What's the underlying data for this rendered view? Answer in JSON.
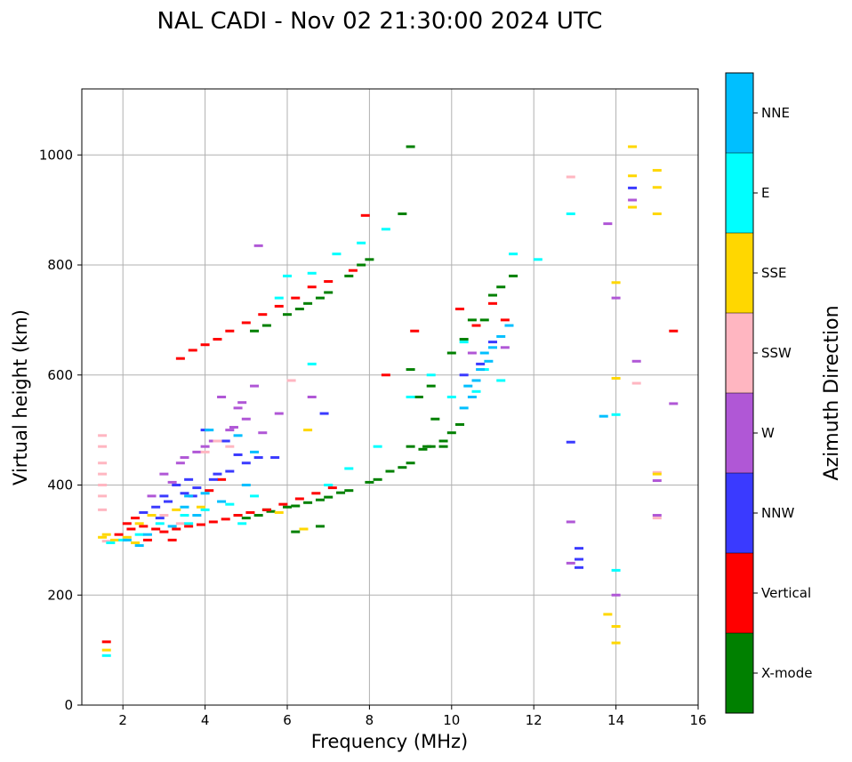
{
  "chart_data": {
    "type": "scatter",
    "title": "NAL CADI - Nov 02 21:30:00 2024 UTC",
    "xlabel": "Frequency (MHz)",
    "ylabel": "Virtual height (km)",
    "xlim": [
      1,
      16
    ],
    "ylim": [
      0,
      1120
    ],
    "xticks": [
      2,
      4,
      6,
      8,
      10,
      12,
      14,
      16
    ],
    "yticks": [
      0,
      200,
      400,
      600,
      800,
      1000
    ],
    "grid": true,
    "colorbar": {
      "title": "Azimuth Direction",
      "categories": [
        {
          "name": "X-mode",
          "color": "#008000"
        },
        {
          "name": "Vertical",
          "color": "#ff0000"
        },
        {
          "name": "NNW",
          "color": "#3a3aff"
        },
        {
          "name": "W",
          "color": "#b057d6"
        },
        {
          "name": "SSW",
          "color": "#ffb6c1"
        },
        {
          "name": "SSE",
          "color": "#ffd700"
        },
        {
          "name": "E",
          "color": "#00ffff"
        },
        {
          "name": "NNE",
          "color": "#00bfff"
        }
      ]
    },
    "series": [
      {
        "name": "X-mode",
        "points": [
          [
            5.0,
            340
          ],
          [
            5.3,
            345
          ],
          [
            5.6,
            352
          ],
          [
            6.0,
            360
          ],
          [
            6.5,
            368
          ],
          [
            7.0,
            378
          ],
          [
            7.5,
            390
          ],
          [
            8.0,
            405
          ],
          [
            8.5,
            425
          ],
          [
            9.0,
            440
          ],
          [
            9.5,
            470
          ],
          [
            10.0,
            495
          ],
          [
            4.8,
            345
          ],
          [
            5.5,
            355
          ],
          [
            6.2,
            362
          ],
          [
            6.8,
            373
          ],
          [
            7.3,
            386
          ],
          [
            8.2,
            410
          ],
          [
            8.8,
            432
          ],
          [
            9.3,
            465
          ],
          [
            9.8,
            480
          ],
          [
            10.2,
            510
          ],
          [
            5.5,
            690
          ],
          [
            6.0,
            710
          ],
          [
            6.5,
            730
          ],
          [
            7.0,
            750
          ],
          [
            7.5,
            780
          ],
          [
            8.0,
            810
          ],
          [
            5.2,
            680
          ],
          [
            6.3,
            720
          ],
          [
            6.8,
            740
          ],
          [
            7.8,
            800
          ],
          [
            9.0,
            1015
          ],
          [
            9.0,
            610
          ],
          [
            9.5,
            580
          ],
          [
            10.0,
            640
          ],
          [
            10.5,
            700
          ],
          [
            11.0,
            745
          ],
          [
            11.5,
            780
          ],
          [
            9.2,
            560
          ],
          [
            9.6,
            520
          ],
          [
            10.3,
            665
          ],
          [
            6.2,
            315
          ],
          [
            6.8,
            325
          ],
          [
            8.8,
            893
          ],
          [
            10.8,
            700
          ],
          [
            11.2,
            760
          ],
          [
            9.4,
            470
          ],
          [
            9.0,
            470
          ],
          [
            9.8,
            470
          ]
        ]
      },
      {
        "name": "Vertical",
        "points": [
          [
            1.9,
            310
          ],
          [
            2.2,
            320
          ],
          [
            2.5,
            325
          ],
          [
            2.8,
            320
          ],
          [
            3.0,
            315
          ],
          [
            3.3,
            320
          ],
          [
            3.6,
            325
          ],
          [
            3.9,
            328
          ],
          [
            4.2,
            333
          ],
          [
            4.5,
            338
          ],
          [
            4.8,
            345
          ],
          [
            5.1,
            350
          ],
          [
            5.5,
            355
          ],
          [
            5.9,
            365
          ],
          [
            6.3,
            375
          ],
          [
            6.7,
            385
          ],
          [
            7.1,
            395
          ],
          [
            2.3,
            340
          ],
          [
            2.1,
            330
          ],
          [
            3.4,
            630
          ],
          [
            3.7,
            645
          ],
          [
            4.0,
            655
          ],
          [
            4.3,
            665
          ],
          [
            4.6,
            680
          ],
          [
            5.0,
            695
          ],
          [
            5.4,
            710
          ],
          [
            5.8,
            725
          ],
          [
            6.2,
            740
          ],
          [
            6.6,
            760
          ],
          [
            7.0,
            770
          ],
          [
            7.6,
            790
          ],
          [
            7.9,
            890
          ],
          [
            8.4,
            600
          ],
          [
            9.1,
            680
          ],
          [
            10.2,
            720
          ],
          [
            11.3,
            700
          ],
          [
            15.4,
            680
          ],
          [
            1.6,
            115
          ],
          [
            2.6,
            300
          ],
          [
            3.2,
            300
          ],
          [
            4.1,
            390
          ],
          [
            4.4,
            410
          ],
          [
            10.6,
            690
          ],
          [
            11.0,
            730
          ]
        ]
      },
      {
        "name": "NNW",
        "points": [
          [
            2.8,
            360
          ],
          [
            3.1,
            370
          ],
          [
            3.5,
            385
          ],
          [
            3.8,
            395
          ],
          [
            4.2,
            410
          ],
          [
            4.6,
            425
          ],
          [
            5.0,
            440
          ],
          [
            5.3,
            450
          ],
          [
            4.0,
            500
          ],
          [
            4.5,
            480
          ],
          [
            3.3,
            400
          ],
          [
            3.6,
            410
          ],
          [
            4.8,
            455
          ],
          [
            2.5,
            350
          ],
          [
            3.0,
            380
          ],
          [
            12.9,
            478
          ],
          [
            13.1,
            250
          ],
          [
            13.1,
            265
          ],
          [
            13.1,
            285
          ],
          [
            14.4,
            940
          ],
          [
            5.7,
            450
          ],
          [
            6.9,
            530
          ],
          [
            10.3,
            600
          ],
          [
            10.7,
            620
          ],
          [
            11.0,
            660
          ],
          [
            3.7,
            380
          ],
          [
            4.3,
            420
          ],
          [
            2.9,
            340
          ]
        ]
      },
      {
        "name": "W",
        "points": [
          [
            3.0,
            420
          ],
          [
            3.4,
            440
          ],
          [
            3.8,
            460
          ],
          [
            4.2,
            480
          ],
          [
            4.6,
            500
          ],
          [
            5.0,
            520
          ],
          [
            4.8,
            540
          ],
          [
            4.4,
            560
          ],
          [
            5.2,
            580
          ],
          [
            4.0,
            470
          ],
          [
            3.5,
            450
          ],
          [
            2.7,
            380
          ],
          [
            3.2,
            405
          ],
          [
            4.7,
            505
          ],
          [
            5.4,
            495
          ],
          [
            12.9,
            333
          ],
          [
            12.9,
            258
          ],
          [
            13.8,
            875
          ],
          [
            14.0,
            740
          ],
          [
            14.0,
            200
          ],
          [
            14.4,
            918
          ],
          [
            14.5,
            625
          ],
          [
            15.0,
            408
          ],
          [
            15.0,
            345
          ],
          [
            15.4,
            548
          ],
          [
            5.3,
            835
          ],
          [
            4.9,
            550
          ],
          [
            5.8,
            530
          ],
          [
            6.6,
            560
          ],
          [
            10.5,
            640
          ],
          [
            11.3,
            650
          ]
        ]
      },
      {
        "name": "SSW",
        "points": [
          [
            1.5,
            490
          ],
          [
            1.5,
            470
          ],
          [
            1.5,
            440
          ],
          [
            1.5,
            420
          ],
          [
            1.5,
            400
          ],
          [
            1.5,
            380
          ],
          [
            1.5,
            355
          ],
          [
            4.3,
            480
          ],
          [
            4.6,
            470
          ],
          [
            4.0,
            460
          ],
          [
            12.9,
            960
          ],
          [
            14.5,
            585
          ],
          [
            15.0,
            423
          ],
          [
            15.0,
            340
          ],
          [
            3.0,
            345
          ],
          [
            3.4,
            330
          ],
          [
            1.6,
            298
          ],
          [
            6.1,
            590
          ]
        ]
      },
      {
        "name": "SSE",
        "points": [
          [
            1.5,
            305
          ],
          [
            1.6,
            310
          ],
          [
            1.8,
            300
          ],
          [
            2.1,
            305
          ],
          [
            2.4,
            330
          ],
          [
            2.7,
            345
          ],
          [
            3.3,
            355
          ],
          [
            3.9,
            360
          ],
          [
            14.4,
            1015
          ],
          [
            14.4,
            962
          ],
          [
            15.0,
            972
          ],
          [
            15.0,
            941
          ],
          [
            15.0,
            893
          ],
          [
            14.4,
            905
          ],
          [
            14.0,
            768
          ],
          [
            14.0,
            594
          ],
          [
            15.0,
            420
          ],
          [
            13.8,
            165
          ],
          [
            14.0,
            143
          ],
          [
            14.0,
            113
          ],
          [
            1.6,
            100
          ],
          [
            6.5,
            500
          ],
          [
            5.8,
            350
          ],
          [
            2.3,
            295
          ],
          [
            6.4,
            320
          ]
        ]
      },
      {
        "name": "E",
        "points": [
          [
            1.7,
            295
          ],
          [
            2.0,
            300
          ],
          [
            2.4,
            310
          ],
          [
            2.9,
            330
          ],
          [
            3.5,
            345
          ],
          [
            4.0,
            355
          ],
          [
            4.6,
            365
          ],
          [
            5.2,
            380
          ],
          [
            6.0,
            780
          ],
          [
            6.6,
            785
          ],
          [
            7.2,
            820
          ],
          [
            7.8,
            840
          ],
          [
            8.4,
            865
          ],
          [
            12.9,
            893
          ],
          [
            14.0,
            528
          ],
          [
            14.0,
            245
          ],
          [
            10.3,
            660
          ],
          [
            10.8,
            610
          ],
          [
            11.2,
            590
          ],
          [
            11.5,
            820
          ],
          [
            9.0,
            560
          ],
          [
            9.5,
            600
          ],
          [
            7.5,
            430
          ],
          [
            7.0,
            400
          ],
          [
            6.6,
            620
          ],
          [
            8.2,
            470
          ],
          [
            1.6,
            90
          ],
          [
            3.6,
            330
          ],
          [
            4.9,
            330
          ],
          [
            10.0,
            560
          ],
          [
            10.6,
            570
          ],
          [
            12.1,
            810
          ],
          [
            5.8,
            740
          ]
        ]
      },
      {
        "name": "NNE",
        "points": [
          [
            2.1,
            300
          ],
          [
            2.6,
            310
          ],
          [
            3.2,
            325
          ],
          [
            3.8,
            345
          ],
          [
            4.4,
            370
          ],
          [
            5.0,
            400
          ],
          [
            3.6,
            380
          ],
          [
            4.1,
            500
          ],
          [
            4.8,
            490
          ],
          [
            5.2,
            460
          ],
          [
            10.3,
            540
          ],
          [
            10.5,
            560
          ],
          [
            10.6,
            590
          ],
          [
            10.7,
            610
          ],
          [
            10.8,
            640
          ],
          [
            11.0,
            650
          ],
          [
            11.2,
            670
          ],
          [
            11.4,
            690
          ],
          [
            3.5,
            360
          ],
          [
            4.0,
            385
          ],
          [
            2.4,
            290
          ],
          [
            13.7,
            525
          ],
          [
            10.4,
            580
          ],
          [
            10.9,
            625
          ]
        ]
      }
    ]
  }
}
